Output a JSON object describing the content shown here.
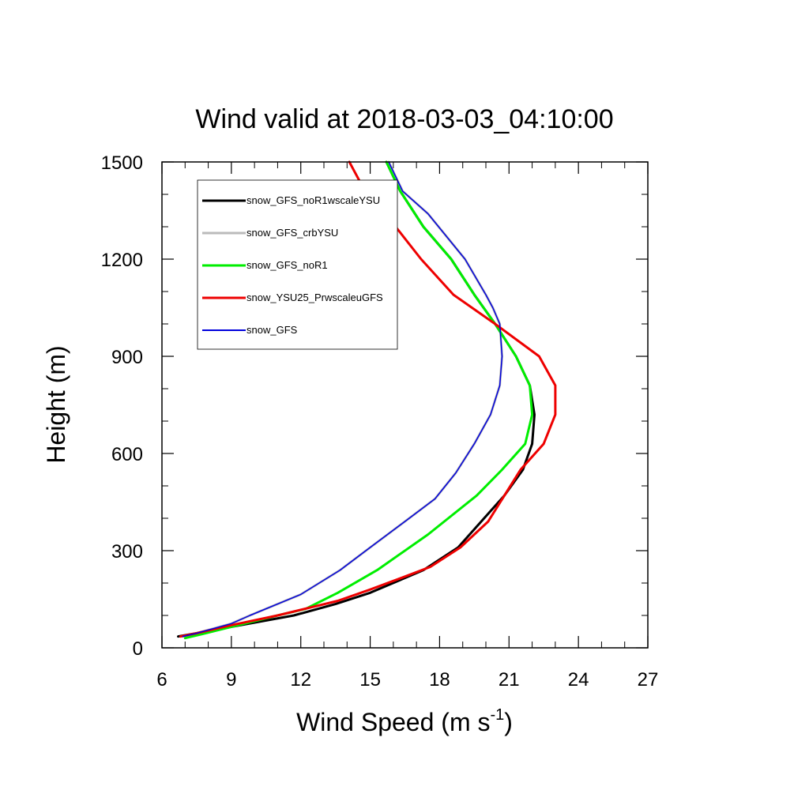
{
  "chart_data": {
    "type": "line",
    "title": "Wind valid at 2018-03-03_04:10:00",
    "xlabel": "Wind Speed (m s",
    "xlabel_sup": "-1",
    "xlabel_end": ")",
    "ylabel": "Height (m)",
    "xlim": [
      6,
      27
    ],
    "ylim": [
      0,
      1500
    ],
    "xticks": [
      6,
      9,
      12,
      15,
      18,
      21,
      24,
      27
    ],
    "yticks": [
      0,
      300,
      600,
      900,
      1200,
      1500
    ],
    "grid": false,
    "legend_position": "top-left",
    "series": [
      {
        "name": "snow_GFS_noR1wscaleYSU",
        "color": "#000000",
        "x": [
          6.7,
          7.5,
          9.0,
          11.7,
          13.5,
          15.0,
          17.3,
          18.8,
          19.8,
          20.8,
          21.6,
          22.0,
          22.1,
          21.9,
          21.3,
          20.4,
          19.5,
          18.5,
          17.3,
          16.3,
          15.7
        ],
        "y": [
          35,
          45,
          65,
          100,
          135,
          170,
          240,
          310,
          390,
          470,
          550,
          630,
          720,
          810,
          900,
          1000,
          1090,
          1200,
          1300,
          1410,
          1500
        ]
      },
      {
        "name": "snow_GFS_crbYSU",
        "color": "#bbbbbb",
        "x": [
          6.9,
          7.5,
          9.0,
          9.8,
          12.0,
          13.7,
          15.0,
          16.5,
          17.8,
          18.7,
          19.5,
          20.2,
          20.6,
          20.7,
          20.6,
          20.3,
          20.0,
          19.1,
          17.5,
          16.4,
          15.8
        ],
        "y": [
          35,
          45,
          75,
          100,
          165,
          240,
          310,
          390,
          460,
          540,
          630,
          720,
          810,
          900,
          1000,
          1050,
          1090,
          1200,
          1340,
          1410,
          1500
        ]
      },
      {
        "name": "snow_GFS_noR1",
        "color": "#00ee00",
        "x": [
          7.0,
          7.6,
          9.0,
          11.0,
          12.2,
          13.6,
          15.3,
          17.5,
          19.6,
          20.7,
          21.7,
          22.0,
          21.9,
          21.3,
          20.4,
          19.5,
          18.5,
          17.3,
          16.3,
          15.7
        ],
        "y": [
          30,
          40,
          65,
          100,
          120,
          170,
          240,
          350,
          470,
          550,
          630,
          720,
          810,
          900,
          1000,
          1090,
          1200,
          1300,
          1410,
          1500
        ]
      },
      {
        "name": "snow_YSU25_PrwscaleuGFS",
        "color": "#ee0000",
        "x": [
          6.8,
          7.5,
          9.0,
          11.0,
          13.6,
          15.0,
          16.5,
          17.6,
          18.9,
          20.1,
          21.5,
          22.5,
          23.0,
          23.0,
          22.3,
          20.4,
          18.6,
          17.2,
          16.1,
          14.7,
          14.1
        ],
        "y": [
          35,
          45,
          70,
          100,
          145,
          180,
          220,
          250,
          310,
          390,
          550,
          630,
          720,
          810,
          900,
          1000,
          1090,
          1200,
          1300,
          1420,
          1500
        ]
      },
      {
        "name": "snow_GFS",
        "color": "#0000dd",
        "x": [
          6.9,
          7.5,
          9.0,
          9.8,
          12.0,
          13.7,
          15.0,
          16.5,
          17.8,
          18.7,
          19.5,
          20.2,
          20.6,
          20.7,
          20.6,
          20.3,
          20.0,
          19.1,
          17.5,
          16.4,
          15.8
        ],
        "y": [
          35,
          45,
          75,
          100,
          165,
          240,
          310,
          390,
          460,
          540,
          630,
          720,
          810,
          900,
          1000,
          1050,
          1090,
          1200,
          1340,
          1410,
          1500
        ]
      }
    ]
  }
}
